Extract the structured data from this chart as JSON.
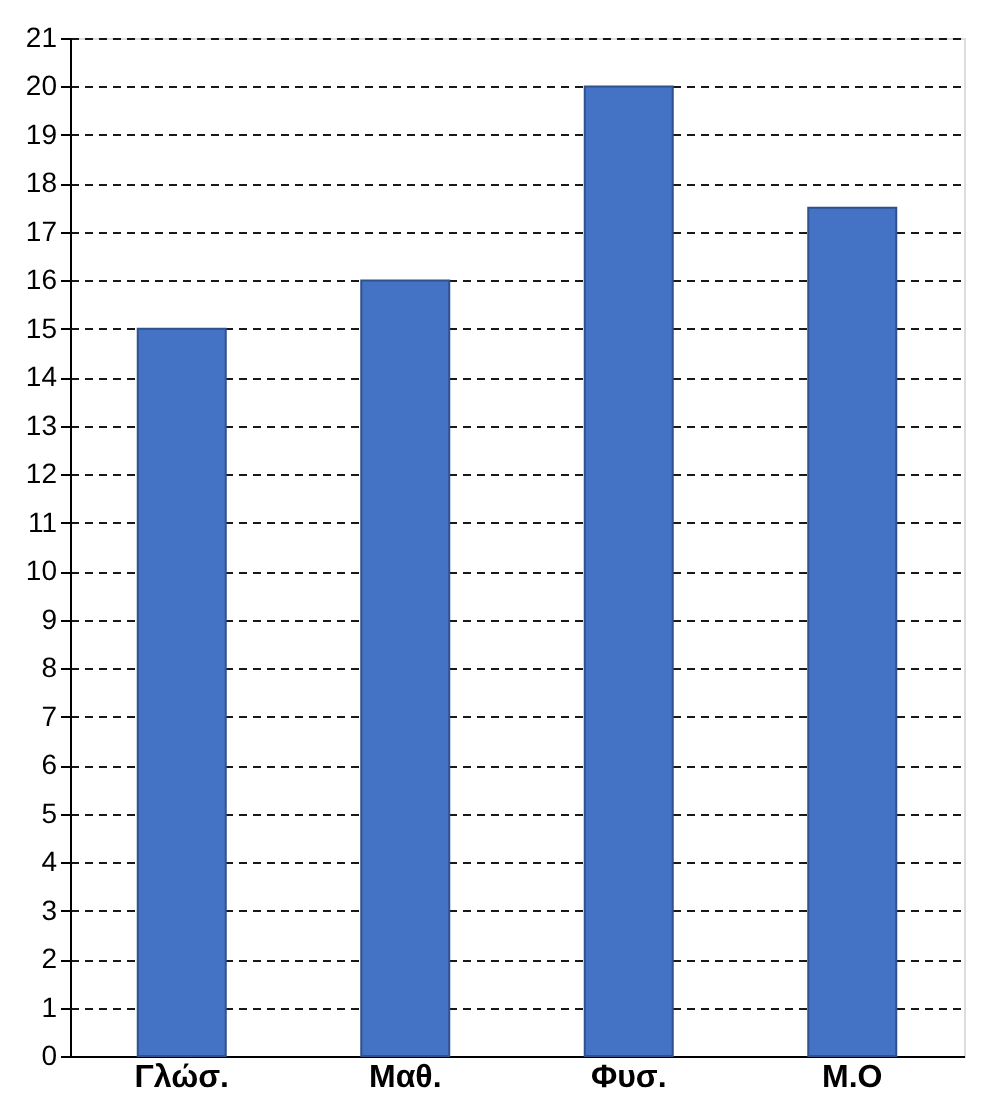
{
  "chart_data": {
    "type": "bar",
    "categories": [
      "Γλώσ.",
      "Μαθ.",
      "Φυσ.",
      "Μ.Ο"
    ],
    "values": [
      15,
      16,
      20,
      17.5
    ],
    "color": "#4472c4",
    "ylim": [
      0,
      21
    ],
    "yticks": [
      0,
      1,
      2,
      3,
      4,
      5,
      6,
      7,
      8,
      9,
      10,
      11,
      12,
      13,
      14,
      15,
      16,
      17,
      18,
      19,
      20,
      21
    ],
    "grid": "y"
  }
}
